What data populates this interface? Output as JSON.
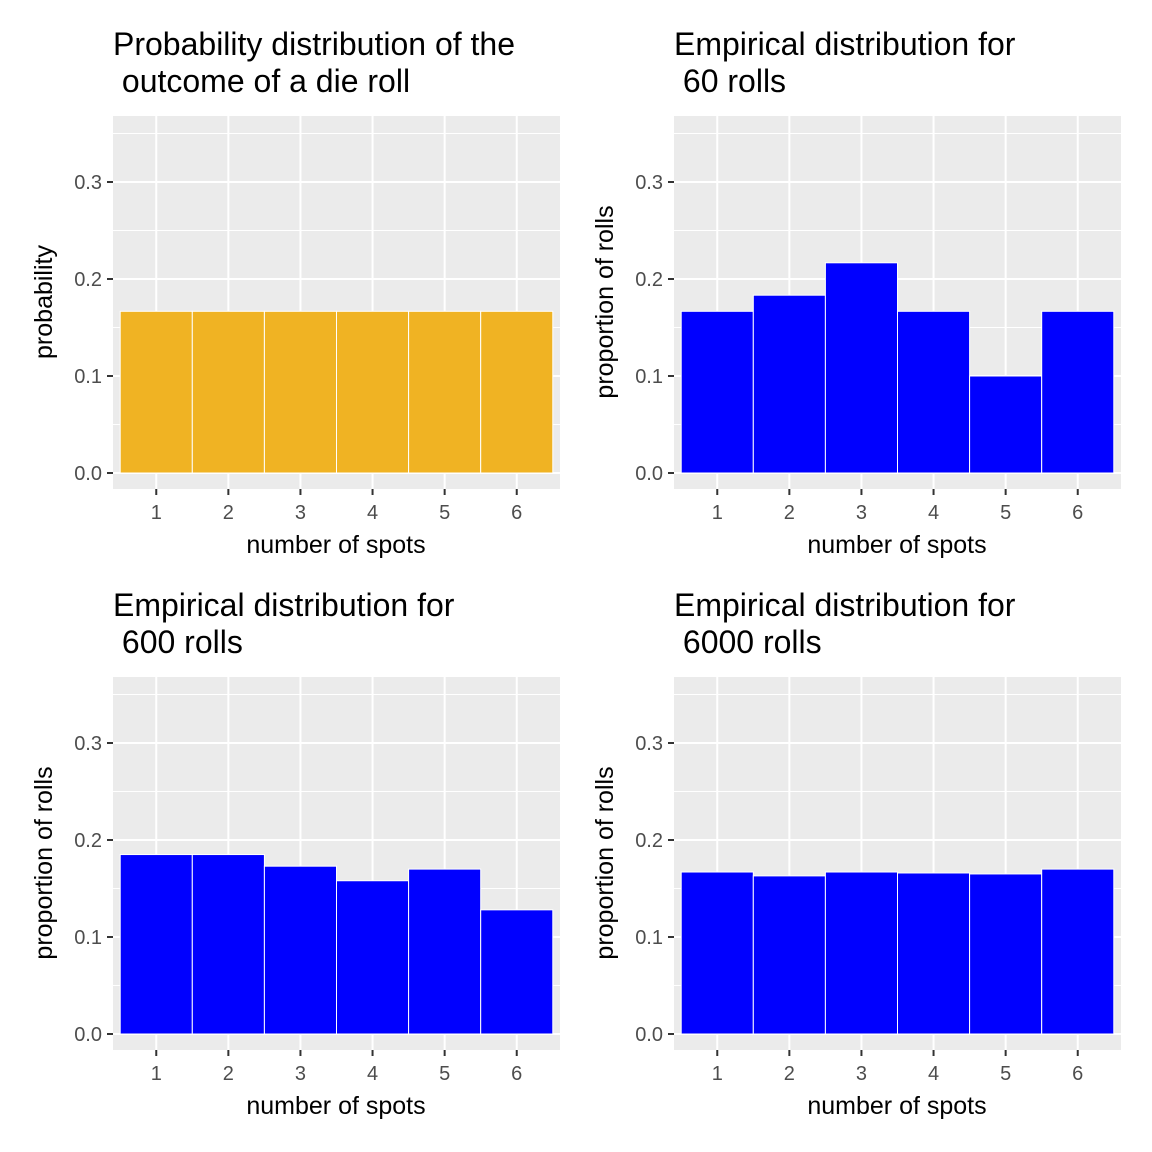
{
  "chart_data": [
    {
      "type": "bar",
      "title_lines": [
        "Probability distribution of the",
        " outcome of a die roll"
      ],
      "xlabel": "number of spots",
      "ylabel": "probability",
      "categories": [
        "1",
        "2",
        "3",
        "4",
        "5",
        "6"
      ],
      "values": [
        0.1667,
        0.1667,
        0.1667,
        0.1667,
        0.1667,
        0.1667
      ],
      "ylim": [
        0,
        0.36
      ],
      "yticks": [
        0.0,
        0.1,
        0.2,
        0.3
      ],
      "ytick_labels": [
        "0.0",
        "0.1",
        "0.2",
        "0.3"
      ],
      "bar_color": "#F0B323",
      "grid": true
    },
    {
      "type": "bar",
      "title_lines": [
        "Empirical distribution for",
        " 60 rolls"
      ],
      "xlabel": "number of spots",
      "ylabel": "proportion of rolls",
      "categories": [
        "1",
        "2",
        "3",
        "4",
        "5",
        "6"
      ],
      "values": [
        0.1667,
        0.1833,
        0.2167,
        0.1667,
        0.1,
        0.1667
      ],
      "ylim": [
        0,
        0.36
      ],
      "yticks": [
        0.0,
        0.1,
        0.2,
        0.3
      ],
      "ytick_labels": [
        "0.0",
        "0.1",
        "0.2",
        "0.3"
      ],
      "bar_color": "#0000FF",
      "grid": true
    },
    {
      "type": "bar",
      "title_lines": [
        "Empirical distribution for",
        " 600 rolls"
      ],
      "xlabel": "number of spots",
      "ylabel": "proportion of rolls",
      "categories": [
        "1",
        "2",
        "3",
        "4",
        "5",
        "6"
      ],
      "values": [
        0.185,
        0.185,
        0.173,
        0.158,
        0.17,
        0.128
      ],
      "ylim": [
        0,
        0.36
      ],
      "yticks": [
        0.0,
        0.1,
        0.2,
        0.3
      ],
      "ytick_labels": [
        "0.0",
        "0.1",
        "0.2",
        "0.3"
      ],
      "bar_color": "#0000FF",
      "grid": true
    },
    {
      "type": "bar",
      "title_lines": [
        "Empirical distribution for",
        " 6000 rolls"
      ],
      "xlabel": "number of spots",
      "ylabel": "proportion of rolls",
      "categories": [
        "1",
        "2",
        "3",
        "4",
        "5",
        "6"
      ],
      "values": [
        0.167,
        0.163,
        0.167,
        0.166,
        0.165,
        0.17
      ],
      "ylim": [
        0,
        0.36
      ],
      "yticks": [
        0.0,
        0.1,
        0.2,
        0.3
      ],
      "ytick_labels": [
        "0.0",
        "0.1",
        "0.2",
        "0.3"
      ],
      "bar_color": "#0000FF",
      "grid": true
    }
  ]
}
